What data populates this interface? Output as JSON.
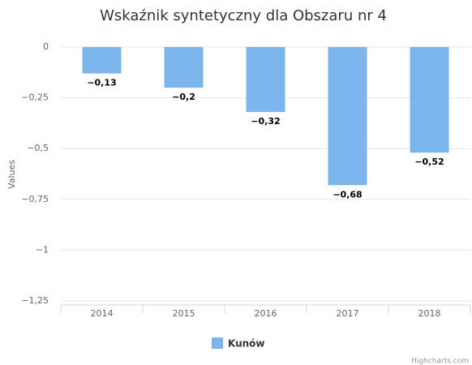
{
  "chart_data": {
    "type": "bar",
    "title": "Wskaźnik syntetyczny dla Obszaru nr 4",
    "y_axis_label": "Values",
    "categories": [
      "2014",
      "2015",
      "2016",
      "2017",
      "2018"
    ],
    "series": [
      {
        "name": "Kunów",
        "color": "#7cb5ec",
        "values": [
          -0.13,
          -0.2,
          -0.32,
          -0.68,
          -0.52
        ],
        "value_labels": [
          "−0,13",
          "−0,2",
          "−0,32",
          "−0,68",
          "−0,52"
        ]
      }
    ],
    "ylim": [
      -1.25,
      0
    ],
    "yticks": [
      0,
      {
        "value": -0.25,
        "label": "−0,25"
      },
      {
        "value": -0.5,
        "label": "−0,5"
      },
      {
        "value": -0.75,
        "label": "−0,75"
      },
      {
        "value": -1,
        "label": "−1"
      },
      {
        "value": -1.25,
        "label": "−1,25"
      }
    ],
    "grid": true,
    "legend": "bottom",
    "credits": "Highcharts.com"
  }
}
